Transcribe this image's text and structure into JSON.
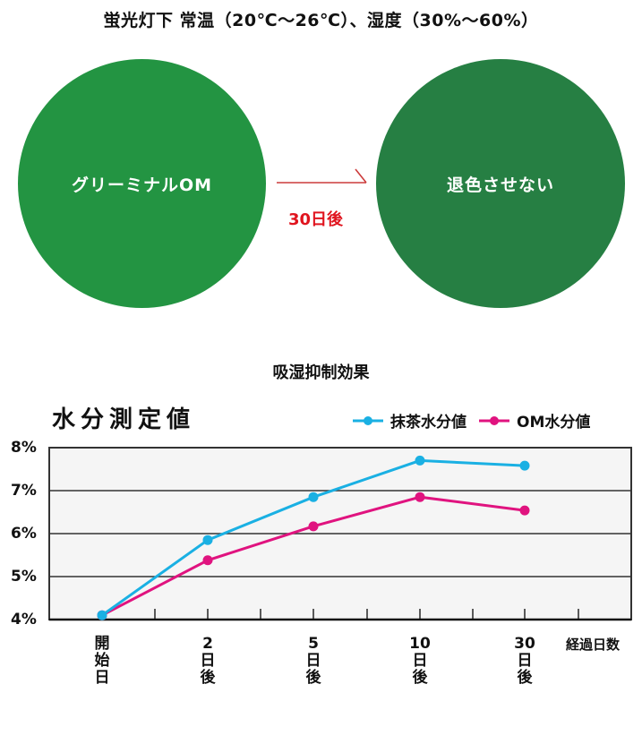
{
  "header": {
    "title": "蛍光灯下 常温（20℃〜26℃）、湿度（30%〜60%）"
  },
  "comparison": {
    "left_circle": {
      "label": "グリーミナルOM",
      "color": "#239442"
    },
    "arrow": {
      "label": "30日後",
      "color": "#e0141e",
      "line_color": "#cc3b3b"
    },
    "right_circle": {
      "label": "退色させない",
      "color": "#267f43"
    }
  },
  "section": {
    "title": "吸湿抑制効果"
  },
  "chart_data": {
    "type": "line",
    "title": "水分測定値",
    "xlabel": "経過日数",
    "ylabel": "",
    "categories": [
      "開始日",
      "2日後",
      "5日後",
      "10日後",
      "30日後"
    ],
    "category_lines": [
      [
        "開",
        "始",
        "日"
      ],
      [
        "2",
        "日",
        "後"
      ],
      [
        "5",
        "日",
        "後"
      ],
      [
        "10",
        "日",
        "後"
      ],
      [
        "30",
        "日",
        "後"
      ]
    ],
    "series": [
      {
        "name": "抹茶水分値",
        "color": "#1ab0e3",
        "values": [
          4.1,
          5.85,
          6.85,
          7.7,
          7.58
        ]
      },
      {
        "name": "OM水分値",
        "color": "#e0137f",
        "values": [
          4.1,
          5.38,
          6.17,
          6.85,
          6.54
        ]
      }
    ],
    "yticks": [
      "8%",
      "7%",
      "6%",
      "5%",
      "4%"
    ],
    "ylim": [
      4,
      8
    ],
    "grid": true,
    "legend_position": "top-right",
    "plot_background": "#f5f5f5"
  }
}
